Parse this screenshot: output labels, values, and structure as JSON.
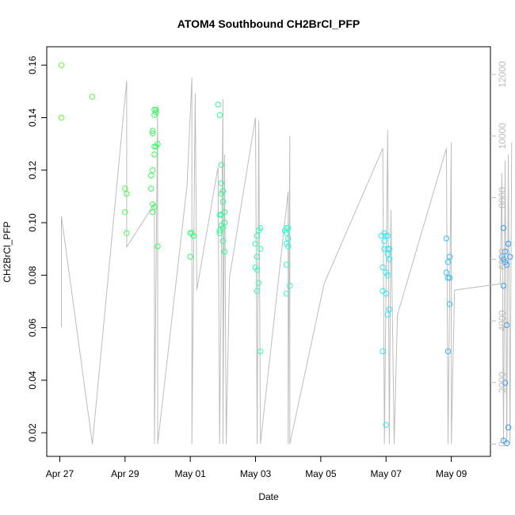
{
  "chart_data": {
    "type": "scatter",
    "title": "ATOM4 Southbound CH2BrCl_PFP",
    "xlabel": "Date",
    "ylabel": "CH2BrCl_PFP",
    "x_ticks": [
      "Apr 27",
      "Apr 29",
      "May 01",
      "May 03",
      "May 05",
      "May 07",
      "May 09"
    ],
    "y_ticks": [
      "0.02",
      "0.04",
      "0.06",
      "0.08",
      "0.10",
      "0.12",
      "0.14",
      "0.16"
    ],
    "y2_ticks": [
      "0",
      "2000",
      "4000",
      "6000",
      "8000",
      "10000",
      "12000"
    ],
    "xlim": [
      -0.4,
      13.2
    ],
    "ylim": [
      0.011,
      0.167
    ],
    "y2lim": [
      -400,
      12900
    ],
    "grid": false,
    "colors": {
      "points_gradient": [
        "#66ff33",
        "#33ff66",
        "#33ffcc",
        "#33e5ff",
        "#3399ff"
      ],
      "altitude_line": "#bdbdbd",
      "right_axis": "#bdbdbd",
      "axis": "#000000"
    },
    "series": [
      {
        "values": [
          [
            0.05,
            0.16
          ],
          [
            0.05,
            0.14
          ],
          [
            1.0,
            0.148
          ],
          [
            2.0,
            0.113
          ],
          [
            2.05,
            0.111
          ],
          [
            2.0,
            0.104
          ],
          [
            2.05,
            0.096
          ],
          [
            2.8,
            0.113
          ],
          [
            2.8,
            0.118
          ],
          [
            2.85,
            0.12
          ],
          [
            2.85,
            0.135
          ],
          [
            2.85,
            0.134
          ],
          [
            2.9,
            0.141
          ],
          [
            2.9,
            0.143
          ],
          [
            2.95,
            0.142
          ],
          [
            2.95,
            0.143
          ],
          [
            2.9,
            0.129
          ],
          [
            2.95,
            0.129
          ],
          [
            3.0,
            0.13
          ],
          [
            2.9,
            0.126
          ],
          [
            2.85,
            0.107
          ],
          [
            2.9,
            0.106
          ],
          [
            2.85,
            0.104
          ],
          [
            3.0,
            0.091
          ],
          [
            4.0,
            0.096
          ],
          [
            4.05,
            0.096
          ],
          [
            4.1,
            0.095
          ],
          [
            4.0,
            0.087
          ],
          [
            4.85,
            0.145
          ],
          [
            4.9,
            0.141
          ],
          [
            4.95,
            0.122
          ],
          [
            4.95,
            0.115
          ],
          [
            5.0,
            0.112
          ],
          [
            4.95,
            0.111
          ],
          [
            5.0,
            0.108
          ],
          [
            4.9,
            0.103
          ],
          [
            4.95,
            0.103
          ],
          [
            5.05,
            0.104
          ],
          [
            5.05,
            0.1
          ],
          [
            4.95,
            0.099
          ],
          [
            5.0,
            0.098
          ],
          [
            4.9,
            0.097
          ],
          [
            4.9,
            0.096
          ],
          [
            5.0,
            0.093
          ],
          [
            5.05,
            0.089
          ],
          [
            6.0,
            0.092
          ],
          [
            6.05,
            0.095
          ],
          [
            6.1,
            0.097
          ],
          [
            6.15,
            0.098
          ],
          [
            6.05,
            0.087
          ],
          [
            6.15,
            0.09
          ],
          [
            6.0,
            0.083
          ],
          [
            6.05,
            0.082
          ],
          [
            6.1,
            0.077
          ],
          [
            6.05,
            0.074
          ],
          [
            6.15,
            0.051
          ],
          [
            6.9,
            0.097
          ],
          [
            6.95,
            0.098
          ],
          [
            7.0,
            0.098
          ],
          [
            6.95,
            0.096
          ],
          [
            7.0,
            0.094
          ],
          [
            6.95,
            0.092
          ],
          [
            7.0,
            0.091
          ],
          [
            6.95,
            0.084
          ],
          [
            6.95,
            0.073
          ],
          [
            7.05,
            0.076
          ],
          [
            9.85,
            0.095
          ],
          [
            9.95,
            0.096
          ],
          [
            10.0,
            0.095
          ],
          [
            10.05,
            0.095
          ],
          [
            9.95,
            0.093
          ],
          [
            10.05,
            0.09
          ],
          [
            10.1,
            0.09
          ],
          [
            9.95,
            0.09
          ],
          [
            10.05,
            0.088
          ],
          [
            10.1,
            0.086
          ],
          [
            9.9,
            0.083
          ],
          [
            10.0,
            0.081
          ],
          [
            10.05,
            0.08
          ],
          [
            9.9,
            0.074
          ],
          [
            10.0,
            0.073
          ],
          [
            10.1,
            0.067
          ],
          [
            10.05,
            0.065
          ],
          [
            9.9,
            0.051
          ],
          [
            10.0,
            0.023
          ],
          [
            11.85,
            0.094
          ],
          [
            11.95,
            0.087
          ],
          [
            11.9,
            0.085
          ],
          [
            11.85,
            0.081
          ],
          [
            11.95,
            0.079
          ],
          [
            11.9,
            0.079
          ],
          [
            11.95,
            0.069
          ],
          [
            11.9,
            0.051
          ],
          [
            13.6,
            0.098
          ],
          [
            13.75,
            0.092
          ],
          [
            13.65,
            0.089
          ],
          [
            13.55,
            0.087
          ],
          [
            13.8,
            0.087
          ],
          [
            13.6,
            0.086
          ],
          [
            13.65,
            0.085
          ],
          [
            13.7,
            0.084
          ],
          [
            13.6,
            0.076
          ],
          [
            13.7,
            0.061
          ],
          [
            13.65,
            0.039
          ],
          [
            13.75,
            0.022
          ],
          [
            13.6,
            0.017
          ],
          [
            13.7,
            0.016
          ]
        ]
      }
    ],
    "altitude_path": [
      [
        0.05,
        3800
      ],
      [
        0.05,
        7400
      ],
      [
        1.0,
        0
      ],
      [
        2.05,
        11800
      ],
      [
        2.05,
        6400
      ],
      [
        2.9,
        7800
      ],
      [
        2.9,
        0
      ],
      [
        3.0,
        11000
      ],
      [
        3.0,
        0
      ],
      [
        3.9,
        8400
      ],
      [
        4.05,
        11900
      ],
      [
        4.05,
        0
      ],
      [
        4.15,
        11400
      ],
      [
        4.2,
        5000
      ],
      [
        4.85,
        9000
      ],
      [
        4.9,
        0
      ],
      [
        5.0,
        11200
      ],
      [
        5.0,
        0
      ],
      [
        5.05,
        9400
      ],
      [
        5.1,
        0
      ],
      [
        5.2,
        5400
      ],
      [
        6.0,
        10600
      ],
      [
        6.05,
        0
      ],
      [
        6.1,
        10500
      ],
      [
        6.15,
        0
      ],
      [
        7.0,
        8200
      ],
      [
        7.0,
        0
      ],
      [
        7.05,
        10000
      ],
      [
        7.05,
        0
      ],
      [
        8.1,
        5200
      ],
      [
        9.9,
        9600
      ],
      [
        9.95,
        0
      ],
      [
        10.05,
        10200
      ],
      [
        10.1,
        0
      ],
      [
        10.15,
        7600
      ],
      [
        10.25,
        0
      ],
      [
        10.35,
        4200
      ],
      [
        11.85,
        9600
      ],
      [
        11.9,
        0
      ],
      [
        12.0,
        9800
      ],
      [
        12.0,
        0
      ],
      [
        12.1,
        5000
      ],
      [
        13.5,
        5200
      ],
      [
        13.55,
        8800
      ],
      [
        13.6,
        0
      ],
      [
        13.65,
        9200
      ],
      [
        13.7,
        0
      ],
      [
        13.75,
        9400
      ],
      [
        13.8,
        0
      ],
      [
        13.85,
        9800
      ]
    ]
  }
}
